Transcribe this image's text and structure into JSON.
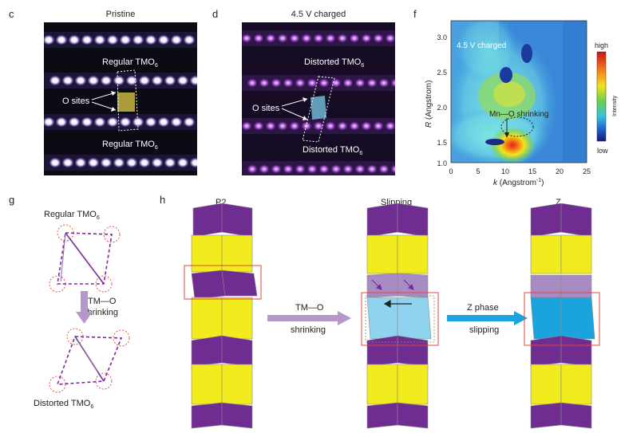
{
  "panels": {
    "c": {
      "letter": "c",
      "title": "Pristine",
      "label_top": "Regular TMO",
      "label_bottom": "Regular TMO",
      "sub": "6",
      "o_sites": "O sites"
    },
    "d": {
      "letter": "d",
      "title": "4.5 V charged",
      "label_top": "Distorted TMO",
      "label_bottom": "Distorted TMO",
      "sub": "6",
      "o_sites": "O sites"
    },
    "f": {
      "letter": "f",
      "inset_label": "4.5 V charged",
      "annotation": "Mn—O shrinking",
      "ylabel_italic": "R",
      "ylabel_rest": " (Angstrom)",
      "xlabel_italic": "k",
      "xlabel_rest": " (Angstrom",
      "xlabel_sup": "-1",
      "xlabel_close": ")",
      "colorbar_high": "high",
      "colorbar_low": "low",
      "colorbar_title": "Intensity",
      "yticks": [
        "3.0",
        "2.5",
        "2.0",
        "1.5",
        "1.0"
      ],
      "xticks": [
        "0",
        "5",
        "10",
        "15",
        "20",
        "25"
      ]
    },
    "g": {
      "letter": "g",
      "top_label": "Regular TMO",
      "bottom_label": "Distorted TMO",
      "sub": "6",
      "arrow_label_1": "TM—O",
      "arrow_label_2": "shrinking"
    },
    "h": {
      "letter": "h",
      "stack1": "P2",
      "stack2": "Slipping",
      "stack3": "Z",
      "arrow1_top": "TM—O",
      "arrow1_bottom": "shrinking",
      "arrow2_top": "Z phase",
      "arrow2_bottom": "slipping"
    }
  },
  "colors": {
    "purple": "#6f2c91",
    "light_purple": "#a98bc4",
    "yellow": "#f2ec1f",
    "blue": "#1aa3dc",
    "light_blue": "#8fd3ee",
    "arrow_purple": "#b597cc",
    "arrow_blue": "#1aa3dc",
    "red_box": "#e0463e"
  }
}
